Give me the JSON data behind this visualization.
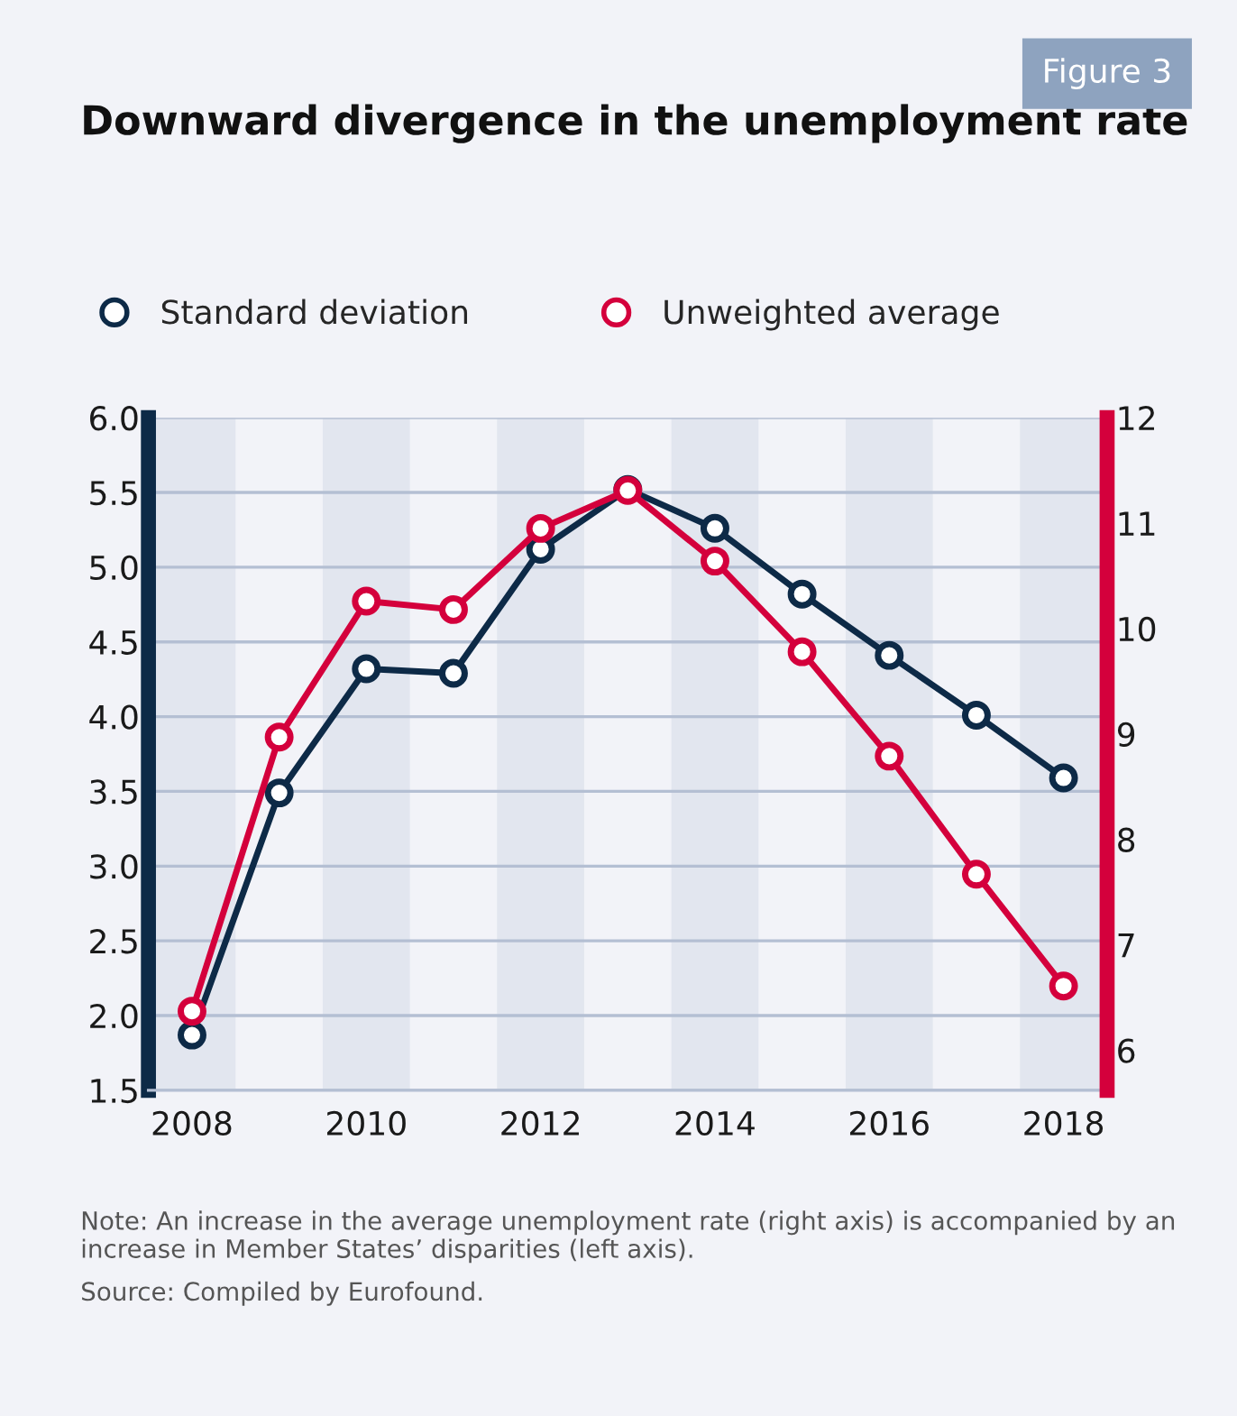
{
  "chart_data": {
    "type": "line",
    "title": "Downward divergence in the unemployment rate",
    "x": [
      2008,
      2009,
      2010,
      2011,
      2012,
      2013,
      2014,
      2015,
      2016,
      2017,
      2018
    ],
    "series": [
      {
        "name": "Standard deviation",
        "color": "#0d2a47",
        "values": [
          1.87,
          3.49,
          4.32,
          4.29,
          5.12,
          5.52,
          5.26,
          4.82,
          4.41,
          4.01,
          3.59
        ]
      },
      {
        "name": "Unweighted average",
        "color": "#d4003c",
        "axis": "y2",
        "values": [
          6.37,
          8.97,
          10.26,
          10.18,
          10.95,
          11.31,
          10.64,
          9.78,
          8.79,
          7.67,
          6.61
        ]
      }
    ],
    "xlim": [
      2007.5,
      2018.5
    ],
    "xticks": [
      2008,
      2010,
      2012,
      2014,
      2016,
      2018
    ],
    "ylim": [
      1.5,
      6.0
    ],
    "yticks": [
      {
        "value": 1.5,
        "label": "1.5"
      },
      {
        "value": 2.0,
        "label": "2.0"
      },
      {
        "value": 2.5,
        "label": "2.5"
      },
      {
        "value": 3.0,
        "label": "3.0"
      },
      {
        "value": 3.5,
        "label": "3.5"
      },
      {
        "value": 4.0,
        "label": "4.0"
      },
      {
        "value": 4.5,
        "label": "4.5"
      },
      {
        "value": 5.0,
        "label": "5.0"
      },
      {
        "value": 5.5,
        "label": "5.5"
      },
      {
        "value": 6.0,
        "label": "6.0"
      }
    ],
    "y2lim": [
      5.62,
      12
    ],
    "y2ticks": [
      6,
      7,
      8,
      9,
      10,
      11,
      12
    ],
    "bands": [
      {
        "axis": "x",
        "from": 2007.5,
        "to": 2008.5,
        "color": "#e2e6ef"
      },
      {
        "axis": "x",
        "from": 2009.5,
        "to": 2010.5,
        "color": "#e2e6ef"
      },
      {
        "axis": "x",
        "from": 2011.5,
        "to": 2012.5,
        "color": "#e2e6ef"
      },
      {
        "axis": "x",
        "from": 2013.5,
        "to": 2014.5,
        "color": "#e2e6ef"
      },
      {
        "axis": "x",
        "from": 2015.5,
        "to": 2016.5,
        "color": "#e2e6ef"
      },
      {
        "axis": "x",
        "from": 2017.5,
        "to": 2018.5,
        "color": "#e2e6ef"
      }
    ],
    "annotations": [
      "Figure 3",
      "Note: An increase in the average unemployment rate (right axis) is accompanied by an increase in Member States’ disparities (left axis).",
      "Source: Compiled by Eurofound."
    ],
    "grid": "y",
    "legend": "top left",
    "marker": "circle",
    "line_style": "solid"
  }
}
